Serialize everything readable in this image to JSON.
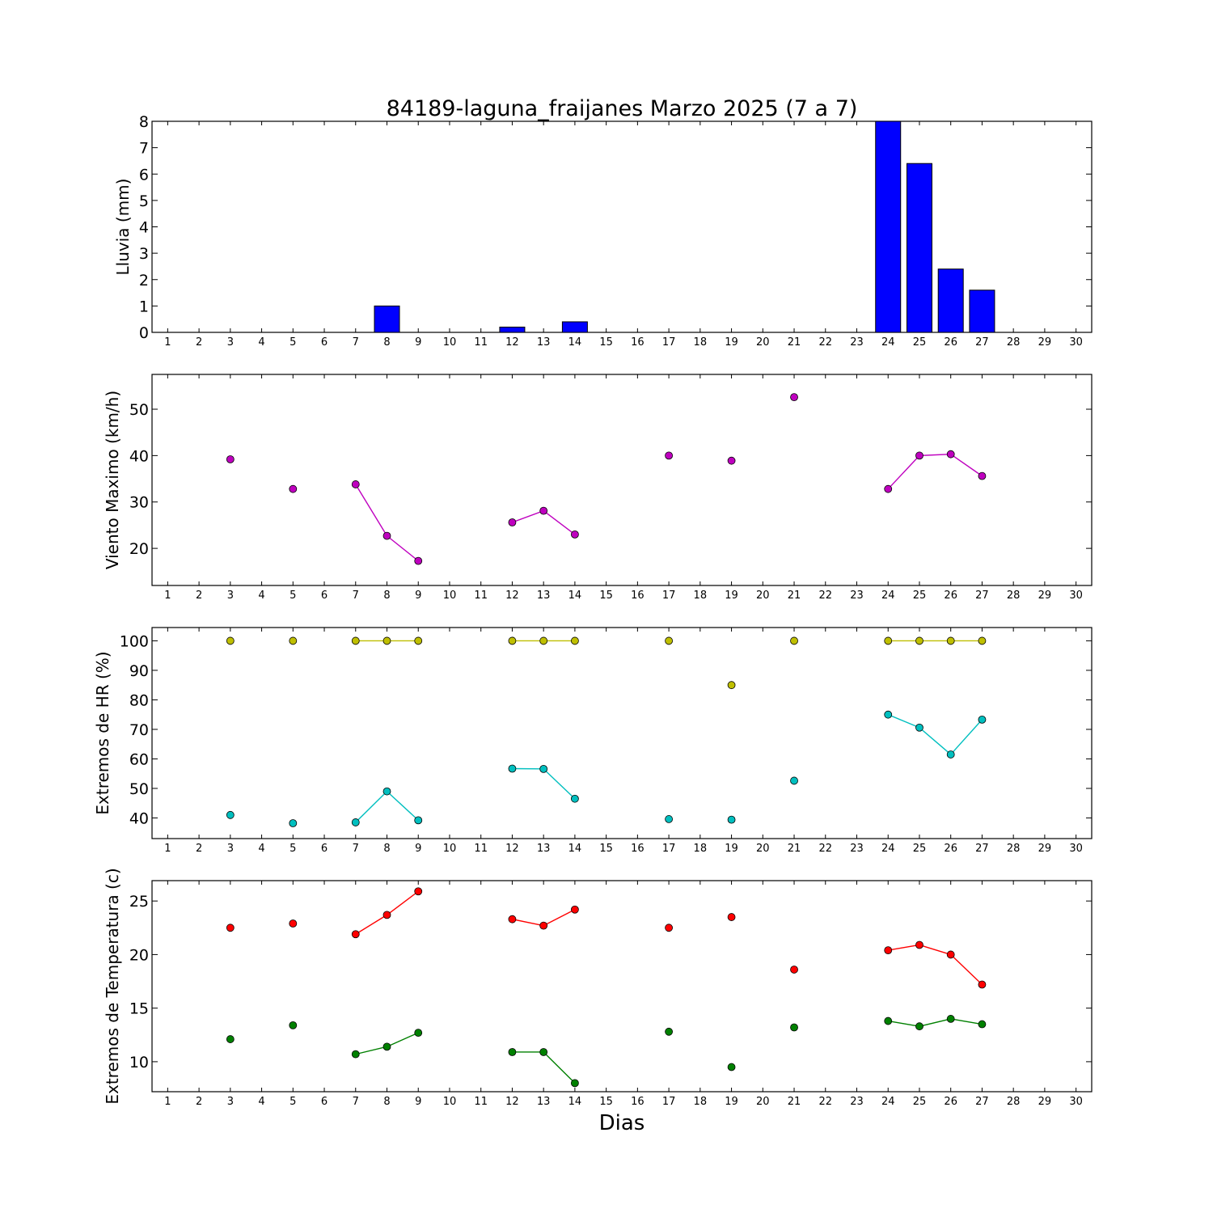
{
  "colors": {
    "rain": "#0000ff",
    "wind": "#bf00bf",
    "hr_max": "#bfbf00",
    "hr_min": "#00bfbf",
    "temp_max": "#ff0000",
    "temp_min": "#008000"
  },
  "chart_data": [
    {
      "type": "bar",
      "title": "84189-laguna_fraijanes Marzo 2025  (7 a 7)",
      "ylabel": "Lluvia (mm)",
      "xlim": [
        0.5,
        30.5
      ],
      "ylim": [
        0,
        8
      ],
      "yticks": [
        0,
        1,
        2,
        3,
        4,
        5,
        6,
        7,
        8
      ],
      "x": [
        3,
        5,
        7,
        8,
        12,
        14,
        17,
        19,
        21,
        24,
        25,
        26,
        27
      ],
      "values": [
        0,
        0,
        0,
        1.0,
        0.2,
        0.4,
        0,
        0,
        0,
        8.0,
        6.4,
        2.4,
        1.6
      ]
    },
    {
      "type": "line",
      "ylabel": "Viento Maximo (km/h)",
      "xlim": [
        0.5,
        30.5
      ],
      "ylim": [
        12,
        57.5
      ],
      "yticks": [
        20,
        30,
        40,
        50
      ],
      "series": [
        {
          "color_key": "wind",
          "values": [
            [
              3,
              39.2
            ],
            [
              5,
              32.8
            ],
            [
              7,
              33.8
            ],
            [
              8,
              22.7
            ],
            [
              9,
              17.3
            ],
            [
              12,
              25.6
            ],
            [
              13,
              28.1
            ],
            [
              14,
              23.0
            ],
            [
              17,
              40.0
            ],
            [
              19,
              38.9
            ],
            [
              21,
              52.6
            ],
            [
              24,
              32.8
            ],
            [
              25,
              40.0
            ],
            [
              26,
              40.3
            ],
            [
              27,
              35.6
            ]
          ]
        }
      ]
    },
    {
      "type": "line",
      "ylabel": "Extremos de HR (%)",
      "xlim": [
        0.5,
        30.5
      ],
      "ylim": [
        33,
        104.5
      ],
      "yticks": [
        40,
        50,
        60,
        70,
        80,
        90,
        100
      ],
      "series": [
        {
          "color_key": "hr_max",
          "values": [
            [
              3,
              100
            ],
            [
              5,
              100
            ],
            [
              7,
              100
            ],
            [
              8,
              100
            ],
            [
              9,
              100
            ],
            [
              12,
              100
            ],
            [
              13,
              100
            ],
            [
              14,
              100
            ],
            [
              17,
              100
            ],
            [
              19,
              85
            ],
            [
              21,
              100
            ],
            [
              24,
              100
            ],
            [
              25,
              100
            ],
            [
              26,
              100
            ],
            [
              27,
              100
            ]
          ]
        },
        {
          "color_key": "hr_min",
          "values": [
            [
              3,
              41.0
            ],
            [
              5,
              38.2
            ],
            [
              7,
              38.5
            ],
            [
              8,
              49.0
            ],
            [
              9,
              39.2
            ],
            [
              12,
              56.7
            ],
            [
              13,
              56.6
            ],
            [
              14,
              46.5
            ],
            [
              17,
              39.6
            ],
            [
              19,
              39.4
            ],
            [
              21,
              52.6
            ],
            [
              24,
              75.0
            ],
            [
              25,
              70.6
            ],
            [
              26,
              61.5
            ],
            [
              27,
              73.3
            ]
          ]
        }
      ]
    },
    {
      "type": "line",
      "ylabel": "Extremos de Temperatura (c)",
      "xlabel": "Dias",
      "xlim": [
        0.5,
        30.5
      ],
      "ylim": [
        7.2,
        26.9
      ],
      "yticks": [
        10,
        15,
        20,
        25
      ],
      "xticks": [
        1,
        2,
        3,
        4,
        5,
        6,
        7,
        8,
        9,
        10,
        11,
        12,
        13,
        14,
        15,
        16,
        17,
        18,
        19,
        20,
        21,
        22,
        23,
        24,
        25,
        26,
        27,
        28,
        29,
        30
      ],
      "series": [
        {
          "color_key": "temp_max",
          "values": [
            [
              3,
              22.5
            ],
            [
              5,
              22.9
            ],
            [
              7,
              21.9
            ],
            [
              8,
              23.7
            ],
            [
              9,
              25.9
            ],
            [
              12,
              23.3
            ],
            [
              13,
              22.7
            ],
            [
              14,
              24.2
            ],
            [
              17,
              22.5
            ],
            [
              19,
              23.5
            ],
            [
              21,
              18.6
            ],
            [
              24,
              20.4
            ],
            [
              25,
              20.9
            ],
            [
              26,
              20.0
            ],
            [
              27,
              17.2
            ]
          ]
        },
        {
          "color_key": "temp_min",
          "values": [
            [
              3,
              12.1
            ],
            [
              5,
              13.4
            ],
            [
              7,
              10.7
            ],
            [
              8,
              11.4
            ],
            [
              9,
              12.7
            ],
            [
              12,
              10.9
            ],
            [
              13,
              10.9
            ],
            [
              14,
              8.0
            ],
            [
              17,
              12.8
            ],
            [
              19,
              9.5
            ],
            [
              21,
              13.2
            ],
            [
              24,
              13.8
            ],
            [
              25,
              13.3
            ],
            [
              26,
              14.0
            ],
            [
              27,
              13.5
            ]
          ]
        }
      ]
    }
  ]
}
